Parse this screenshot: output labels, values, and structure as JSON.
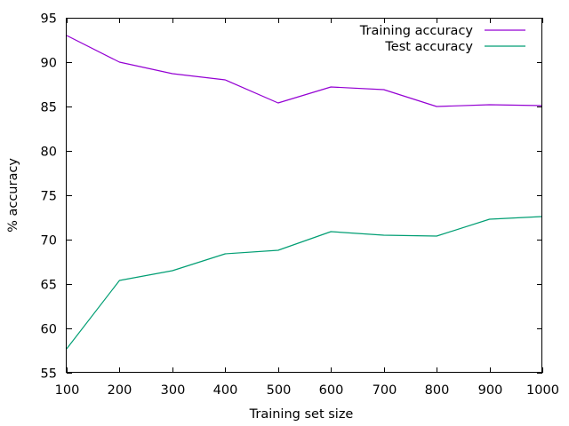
{
  "chart_data": {
    "type": "line",
    "title": "",
    "xlabel": "Training set size",
    "ylabel": "% accuracy",
    "xlim": [
      100,
      1000
    ],
    "ylim": [
      55,
      95
    ],
    "x_ticks": [
      "100",
      "200",
      "300",
      "400",
      "500",
      "600",
      "700",
      "800",
      "900",
      "1000"
    ],
    "y_ticks": [
      "55",
      "60",
      "65",
      "70",
      "75",
      "80",
      "85",
      "90",
      "95"
    ],
    "grid": false,
    "legend_position": "top-right",
    "x": [
      100,
      200,
      300,
      400,
      500,
      600,
      700,
      800,
      900,
      1000
    ],
    "series": [
      {
        "name": "Training accuracy",
        "color": "#9400d3",
        "values": [
          93.0,
          90.0,
          88.7,
          88.0,
          85.4,
          87.2,
          86.9,
          85.0,
          85.2,
          85.1
        ]
      },
      {
        "name": "Test accuracy",
        "color": "#009e73",
        "values": [
          57.7,
          65.4,
          66.5,
          68.4,
          68.8,
          70.9,
          70.5,
          70.4,
          72.3,
          72.6
        ]
      }
    ]
  }
}
